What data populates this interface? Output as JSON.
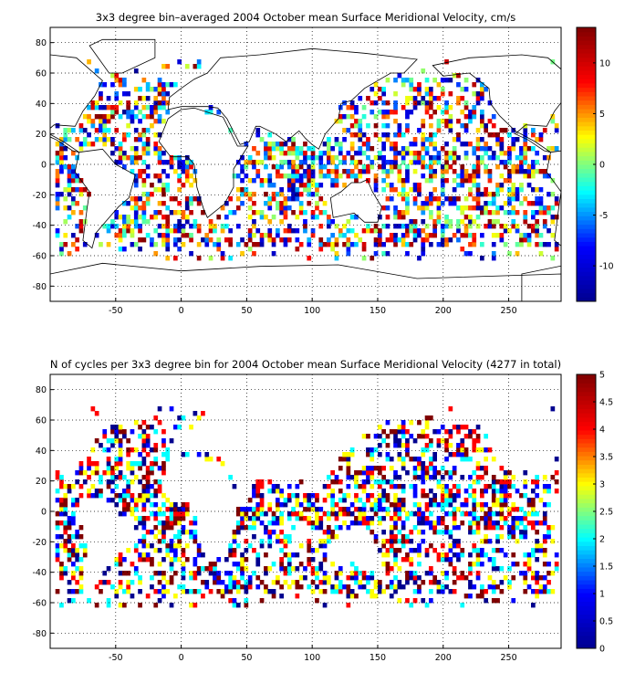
{
  "chart_data": [
    {
      "type": "heatmap",
      "title": "3x3 degree bin–averaged 2004 October mean Surface Meridional Velocity, cm/s",
      "xlabel": "",
      "ylabel": "",
      "xlim": [
        -100,
        290
      ],
      "ylim": [
        -90,
        90
      ],
      "x_ticks": [
        -50,
        0,
        50,
        100,
        150,
        200,
        250
      ],
      "y_ticks": [
        80,
        60,
        40,
        20,
        0,
        -20,
        -40,
        -60,
        -80
      ],
      "grid": true,
      "bin_size_deg": 3,
      "colorbar": {
        "min": -13.5,
        "max": 13.5,
        "ticks": [
          10,
          5,
          0,
          -5,
          -10
        ]
      },
      "colormap": [
        "#00008f",
        "#0000ff",
        "#00ffff",
        "#ffff00",
        "#ff0000",
        "#800000"
      ]
    },
    {
      "type": "heatmap",
      "title": "N of cycles per 3x3 degree bin for 2004 October mean Surface Meridional Velocity (4277 in total)",
      "xlabel": "",
      "ylabel": "",
      "xlim": [
        -100,
        290
      ],
      "ylim": [
        -90,
        90
      ],
      "x_ticks": [
        -50,
        0,
        50,
        100,
        150,
        200,
        250
      ],
      "y_ticks": [
        80,
        60,
        40,
        20,
        0,
        -20,
        -40,
        -60,
        -80
      ],
      "grid": true,
      "bin_size_deg": 3,
      "total_cycles": 4277,
      "colorbar": {
        "min": 0,
        "max": 5,
        "ticks": [
          5,
          4.5,
          4,
          3.5,
          3,
          2.5,
          2,
          1.5,
          1,
          0.5,
          0
        ]
      },
      "colormap": [
        "#00008f",
        "#0000ff",
        "#00ffff",
        "#ffff00",
        "#ff0000",
        "#800000"
      ]
    }
  ]
}
